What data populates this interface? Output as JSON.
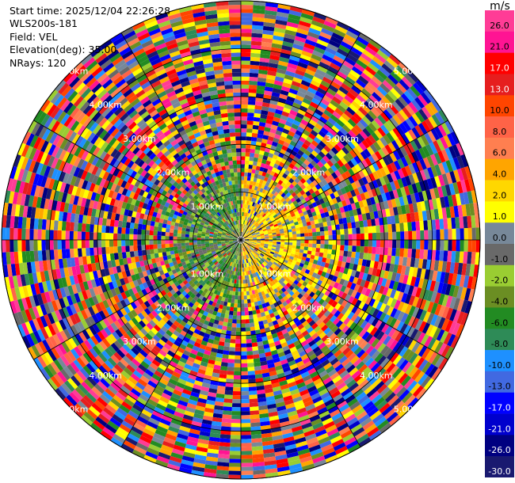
{
  "header": {
    "start_time": "Start time: 2025/12/04 22:26:28",
    "device": "WLS200s-181",
    "field": "Field: VEL",
    "elevation": "Elevation(deg): 35.00",
    "nrays": "NRays: 120"
  },
  "colorbar": {
    "unit": "m/s",
    "bins": [
      {
        "label": "26.0",
        "color": "#ff3c96"
      },
      {
        "label": "21.0",
        "color": "#ff1493"
      },
      {
        "label": "17.0",
        "color": "#ff0000"
      },
      {
        "label": "13.0",
        "color": "#e61e1e"
      },
      {
        "label": "10.0",
        "color": "#ff4500"
      },
      {
        "label": "8.0",
        "color": "#ff6347"
      },
      {
        "label": "6.0",
        "color": "#ff7f50"
      },
      {
        "label": "4.0",
        "color": "#ffa500"
      },
      {
        "label": "2.0",
        "color": "#ffd700"
      },
      {
        "label": "1.0",
        "color": "#ffff00"
      },
      {
        "label": "0.0",
        "color": "#778899"
      },
      {
        "label": "-1.0",
        "color": "#696969"
      },
      {
        "label": "-2.0",
        "color": "#9acd32"
      },
      {
        "label": "-4.0",
        "color": "#6b8e23"
      },
      {
        "label": "-6.0",
        "color": "#228b22"
      },
      {
        "label": "-8.0",
        "color": "#2e8b57"
      },
      {
        "label": "-10.0",
        "color": "#1e90ff"
      },
      {
        "label": "-13.0",
        "color": "#4169e1"
      },
      {
        "label": "-17.0",
        "color": "#0000ff"
      },
      {
        "label": "-21.0",
        "color": "#0000cd"
      },
      {
        "label": "-26.0",
        "color": "#000080"
      },
      {
        "label": "-30.0",
        "color": "#191970"
      }
    ]
  },
  "chart_data": {
    "type": "heatmap",
    "projection": "polar PPI",
    "field": "VEL",
    "unit": "m/s",
    "n_rays": 120,
    "range_rings_km": [
      1,
      2,
      3,
      4,
      5
    ],
    "ring_labels": [
      "1.00km",
      "2.00km",
      "3.00km",
      "4.00km",
      "5.00km"
    ],
    "max_range_km": 5,
    "azimuth_lines_deg": [
      0,
      30,
      60,
      90,
      120,
      150,
      180,
      210,
      240,
      270,
      300,
      330
    ],
    "data_pattern": {
      "inner_radius_km": 1.3,
      "inner_east_half": "positive velocities (0 to 4 m/s, yellow)",
      "inner_west_half": "negative velocities (-1 to -8 m/s, green)",
      "outer": "noisy values spanning -30 to 26 m/s"
    }
  }
}
